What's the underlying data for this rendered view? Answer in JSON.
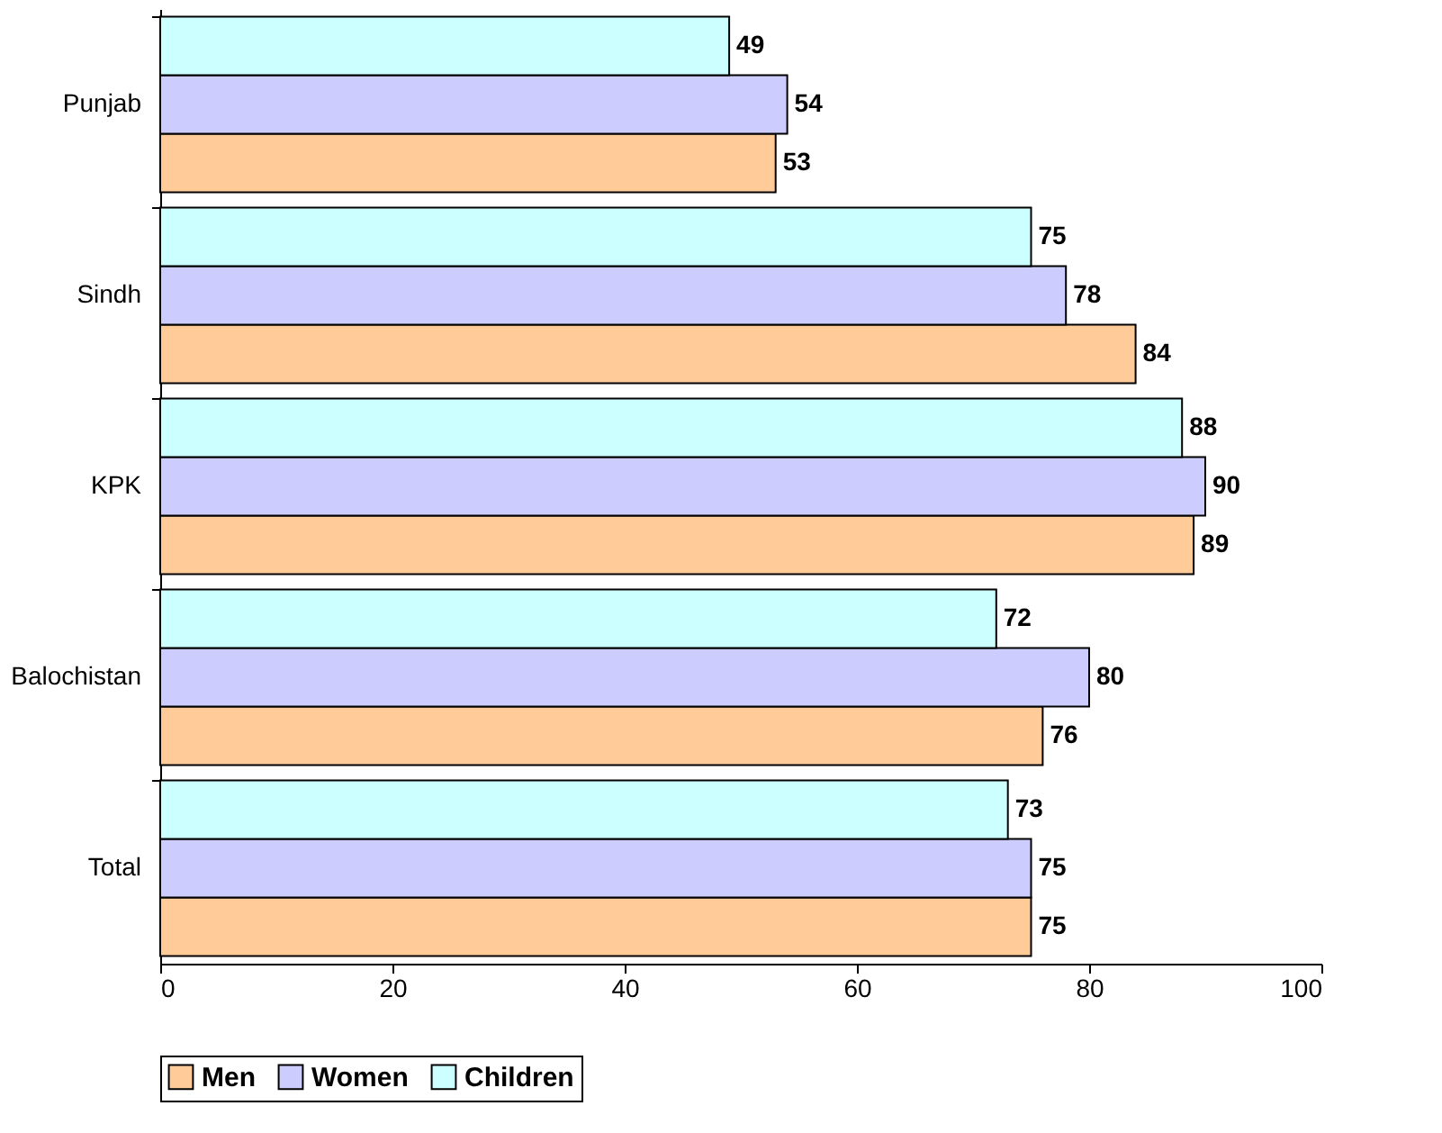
{
  "chart_data": {
    "type": "bar",
    "orientation": "horizontal",
    "categories": [
      "Punjab",
      "Sindh",
      "KPK",
      "Balochistan",
      "Total"
    ],
    "series": [
      {
        "name": "Men",
        "color": "#ffcc99",
        "values": [
          53,
          84,
          89,
          76,
          75
        ]
      },
      {
        "name": "Women",
        "color": "#ccccff",
        "values": [
          54,
          78,
          90,
          80,
          75
        ]
      },
      {
        "name": "Children",
        "color": "#ccffff",
        "values": [
          49,
          75,
          88,
          72,
          73
        ]
      }
    ],
    "xlim": [
      0,
      100
    ],
    "xticks": [
      0,
      20,
      40,
      60,
      80,
      100
    ],
    "data_labels": true,
    "grid": false,
    "legend": "bottom"
  }
}
